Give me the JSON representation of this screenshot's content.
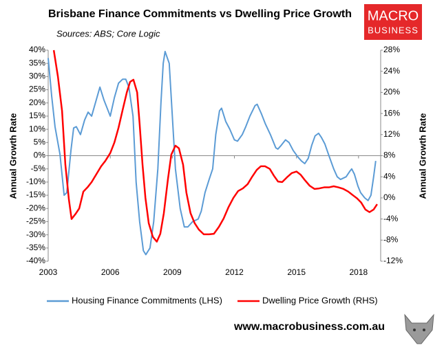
{
  "chart_data": {
    "type": "line",
    "title": "Brisbane Finance Commitments vs Dwelling Price Growth",
    "subtitle": "Sources: ABS; Core Logic",
    "ylabel": "Annual Growth Rate",
    "y2label": "Annual Growth Rate",
    "xlim": [
      2003,
      2019.07
    ],
    "xticks": [
      2003,
      2006,
      2009,
      2012,
      2015,
      2018
    ],
    "ylim": [
      -40,
      40
    ],
    "yticks": [
      {
        "value": -40,
        "label": "-40%"
      },
      {
        "value": -35,
        "label": "-35%"
      },
      {
        "value": -30,
        "label": "-30%"
      },
      {
        "value": -25,
        "label": "-25%"
      },
      {
        "value": -20,
        "label": "-20%"
      },
      {
        "value": -15,
        "label": "-15%"
      },
      {
        "value": -10,
        "label": "-10%"
      },
      {
        "value": -5,
        "label": "-5%"
      },
      {
        "value": 0,
        "label": "0%"
      },
      {
        "value": 5,
        "label": "5%"
      },
      {
        "value": 10,
        "label": "10%"
      },
      {
        "value": 15,
        "label": "15%"
      },
      {
        "value": 20,
        "label": "20%"
      },
      {
        "value": 25,
        "label": "25%"
      },
      {
        "value": 30,
        "label": "30%"
      },
      {
        "value": 35,
        "label": "35%"
      },
      {
        "value": 40,
        "label": "40%"
      }
    ],
    "y2lim": [
      -12,
      28
    ],
    "y2ticks": [
      {
        "value": -12,
        "label": "-12%"
      },
      {
        "value": -8,
        "label": "-8%"
      },
      {
        "value": -4,
        "label": "-4%"
      },
      {
        "value": 0,
        "label": "0%"
      },
      {
        "value": 4,
        "label": "4%"
      },
      {
        "value": 8,
        "label": "8%"
      },
      {
        "value": 12,
        "label": "12%"
      },
      {
        "value": 16,
        "label": "16%"
      },
      {
        "value": 20,
        "label": "20%"
      },
      {
        "value": 24,
        "label": "24%"
      },
      {
        "value": 28,
        "label": "28%"
      }
    ],
    "grid": false,
    "legend": "bottom",
    "series": [
      {
        "name": "Housing Finance Commitments (LHS)",
        "color": "#5b9bd5",
        "axis": "y",
        "x": [
          2003.0,
          2003.17,
          2003.33,
          2003.57,
          2003.77,
          2003.9,
          2004.1,
          2004.23,
          2004.36,
          2004.56,
          2004.76,
          2004.93,
          2005.1,
          2005.5,
          2005.7,
          2006.0,
          2006.2,
          2006.4,
          2006.6,
          2006.75,
          2006.9,
          2007.1,
          2007.25,
          2007.42,
          2007.6,
          2007.72,
          2007.92,
          2008.1,
          2008.3,
          2008.45,
          2008.56,
          2008.65,
          2008.85,
          2009.0,
          2009.15,
          2009.38,
          2009.58,
          2009.75,
          2009.98,
          2010.25,
          2010.4,
          2010.58,
          2010.78,
          2010.95,
          2011.1,
          2011.28,
          2011.38,
          2011.58,
          2011.78,
          2012.0,
          2012.15,
          2012.38,
          2012.55,
          2012.75,
          2013.0,
          2013.1,
          2013.3,
          2013.5,
          2013.74,
          2014.0,
          2014.1,
          2014.27,
          2014.47,
          2014.64,
          2014.84,
          2015.07,
          2015.24,
          2015.4,
          2015.57,
          2015.74,
          2015.9,
          2016.07,
          2016.2,
          2016.37,
          2016.57,
          2016.8,
          2016.97,
          2017.13,
          2017.4,
          2017.57,
          2017.67,
          2017.8,
          2017.97,
          2018.1,
          2018.3,
          2018.46,
          2018.6,
          2018.73,
          2018.83
        ],
        "values": [
          37,
          22.5,
          11,
          0.5,
          -15,
          -14,
          2,
          10.5,
          11,
          8,
          13.5,
          16.5,
          15,
          26,
          21,
          15,
          22,
          27.5,
          29,
          29,
          26,
          15,
          -10,
          -25,
          -36,
          -37.5,
          -35,
          -25,
          -5,
          20,
          35,
          39.5,
          35,
          15,
          -5,
          -20,
          -27,
          -27,
          -25,
          -24,
          -21,
          -14,
          -9,
          -5,
          8,
          17,
          18,
          13,
          10,
          6,
          5.5,
          8,
          11,
          15,
          19,
          19.5,
          16,
          12,
          8,
          3,
          2.5,
          4,
          6,
          5,
          2,
          -0.5,
          -2,
          -3,
          -1,
          4,
          7.5,
          8.5,
          7,
          4.5,
          0,
          -5,
          -8,
          -9,
          -8,
          -6,
          -5,
          -7,
          -11.5,
          -14,
          -16,
          -17,
          -15,
          -8,
          -2
        ]
      },
      {
        "name": "Dwelling Price Growth (RHS)",
        "color": "#ff0000",
        "axis": "y2",
        "x": [
          2003.27,
          2003.47,
          2003.67,
          2003.83,
          2004.0,
          2004.13,
          2004.33,
          2004.5,
          2004.7,
          2004.9,
          2005.1,
          2005.33,
          2005.56,
          2005.76,
          2006.0,
          2006.2,
          2006.4,
          2006.6,
          2006.8,
          2006.96,
          2007.12,
          2007.3,
          2007.42,
          2007.56,
          2007.7,
          2007.86,
          2008.06,
          2008.25,
          2008.42,
          2008.59,
          2008.79,
          2008.95,
          2009.15,
          2009.32,
          2009.52,
          2009.68,
          2009.88,
          2010.08,
          2010.28,
          2010.52,
          2010.78,
          2011.01,
          2011.25,
          2011.48,
          2011.71,
          2011.95,
          2012.18,
          2012.41,
          2012.64,
          2012.84,
          2013.08,
          2013.28,
          2013.48,
          2013.71,
          2013.91,
          2014.11,
          2014.31,
          2014.54,
          2014.77,
          2015.0,
          2015.2,
          2015.4,
          2015.64,
          2015.87,
          2016.1,
          2016.34,
          2016.57,
          2016.8,
          2017.03,
          2017.27,
          2017.5,
          2017.73,
          2017.93,
          2018.13,
          2018.33,
          2018.53,
          2018.73,
          2018.9
        ],
        "values": [
          28,
          23,
          16.5,
          6.3,
          -0.3,
          -4,
          -3,
          -2,
          1.2,
          2,
          3,
          4.5,
          6,
          7,
          8.5,
          10.5,
          13.3,
          16.7,
          20,
          22,
          22.4,
          20,
          14,
          6.3,
          0,
          -4.8,
          -7.4,
          -8.3,
          -6.8,
          -2.9,
          3.6,
          8.2,
          9.9,
          9.4,
          6.3,
          1,
          -2.9,
          -4.8,
          -6,
          -6.9,
          -6.9,
          -6.8,
          -5.5,
          -3.9,
          -1.8,
          0,
          1.3,
          1.8,
          2.6,
          3.9,
          5.3,
          6,
          6,
          5.5,
          4.2,
          3.1,
          3,
          3.9,
          4.7,
          5,
          4.4,
          3.4,
          2.3,
          1.7,
          1.8,
          2,
          2,
          2.2,
          2,
          1.7,
          1.2,
          0.5,
          -0.1,
          -0.9,
          -2.2,
          -2.7,
          -2.2,
          -1.2
        ]
      }
    ]
  },
  "logo": {
    "top": "MACRO",
    "bottom": "BUSINESS"
  },
  "url": "www.macrobusiness.com.au"
}
